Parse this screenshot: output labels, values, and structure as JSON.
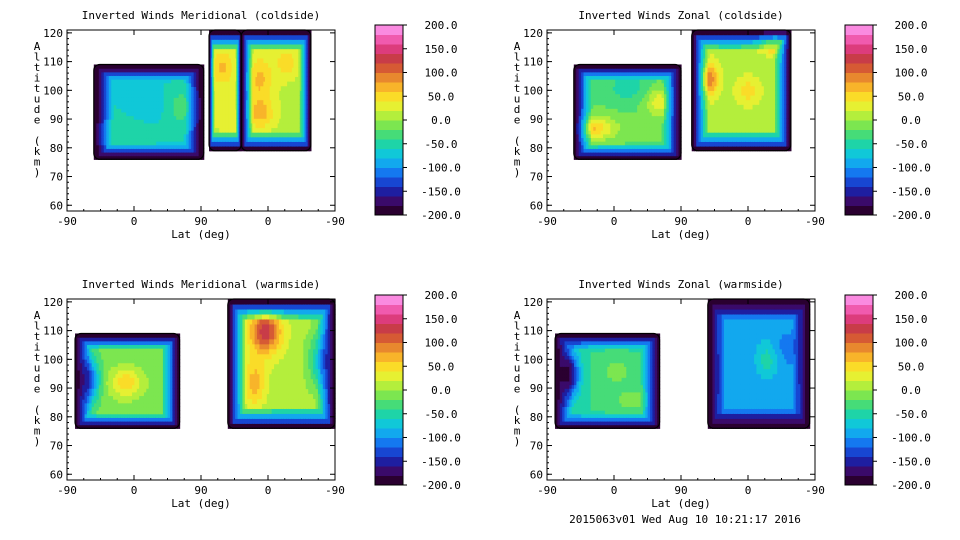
{
  "footer": "2015063v01 Wed Aug 10 10:21:17 2016",
  "colors": {
    "scale": [
      "#2a0030",
      "#3a0a6a",
      "#1e1ea0",
      "#1746d2",
      "#1478f0",
      "#12a8ee",
      "#10c8d8",
      "#1ed4a8",
      "#46dc78",
      "#7ce650",
      "#b4ee3c",
      "#e6f032",
      "#fadc28",
      "#f8b42a",
      "#e8882e",
      "#d65a34",
      "#c83c48",
      "#dc3c7c",
      "#f05aae",
      "#fa8ae0"
    ],
    "axis": "#000000",
    "background": "#ffffff"
  },
  "chart_data": [
    {
      "type": "heatmap",
      "title": "Inverted Winds Meridional (coldside)",
      "xlabel": "Lat (deg)",
      "ylabel": "Altitude (km)",
      "xticks": [
        "-90",
        "0",
        "90",
        "0",
        "-90"
      ],
      "yticks": [
        "60",
        "70",
        "80",
        "90",
        "100",
        "110",
        "120"
      ],
      "ylim": [
        58,
        121
      ],
      "colorbar_ticks": [
        "200.0",
        "150.0",
        "100.0",
        "50.0",
        "0.0",
        "-50.0",
        "-100.0",
        "-150.0",
        "-200.0"
      ],
      "colorbar_range": [
        -200,
        200
      ],
      "segments": [
        {
          "x0": 0.1,
          "x1": 0.51,
          "z0": 76,
          "z1": 109,
          "base": -60,
          "lumps": [
            [
              0.3,
              96,
              0.05,
              5,
              -20
            ],
            [
              0.43,
              94,
              0.05,
              6,
              35
            ],
            [
              0.2,
              85,
              0.1,
              4,
              20
            ]
          ]
        },
        {
          "x0": 0.53,
          "x1": 0.65,
          "z0": 79,
          "z1": 121,
          "base": 20,
          "lumps": [
            [
              0.58,
              108,
              0.04,
              6,
              45
            ],
            [
              0.61,
              90,
              0.04,
              8,
              10
            ]
          ]
        },
        {
          "x0": 0.65,
          "x1": 0.91,
          "z0": 79,
          "z1": 121,
          "base": 15,
          "lumps": [
            [
              0.72,
              104,
              0.05,
              8,
              50
            ],
            [
              0.72,
              92,
              0.05,
              5,
              55
            ],
            [
              0.82,
              110,
              0.04,
              5,
              40
            ]
          ]
        }
      ]
    },
    {
      "type": "heatmap",
      "title": "Inverted Winds Zonal (coldside)",
      "xlabel": "Lat (deg)",
      "ylabel": "Altitude (km)",
      "xticks": [
        "-90",
        "0",
        "90",
        "0",
        "-90"
      ],
      "yticks": [
        "60",
        "70",
        "80",
        "90",
        "100",
        "110",
        "120"
      ],
      "ylim": [
        58,
        121
      ],
      "colorbar_ticks": [
        "200.0",
        "150.0",
        "100.0",
        "50.0",
        "0.0",
        "-50.0",
        "-100.0",
        "-150.0",
        "-200.0"
      ],
      "colorbar_range": [
        -200,
        200
      ],
      "segments": [
        {
          "x0": 0.1,
          "x1": 0.5,
          "z0": 76,
          "z1": 109,
          "base": -20,
          "lumps": [
            [
              0.15,
              87,
              0.1,
              4,
              90
            ],
            [
              0.42,
              96,
              0.05,
              5,
              55
            ],
            [
              0.3,
              101,
              0.08,
              5,
              -30
            ]
          ]
        },
        {
          "x0": 0.54,
          "x1": 0.91,
          "z0": 79,
          "z1": 121,
          "base": 10,
          "lumps": [
            [
              0.6,
              104,
              0.04,
              6,
              90
            ],
            [
              0.85,
              118,
              0.06,
              4,
              120
            ],
            [
              0.75,
              100,
              0.05,
              5,
              40
            ]
          ]
        }
      ]
    },
    {
      "type": "heatmap",
      "title": "Inverted Winds Meridional (warmside)",
      "xlabel": "Lat (deg)",
      "ylabel": "Altitude (km)",
      "xticks": [
        "-90",
        "0",
        "90",
        "0",
        "-90"
      ],
      "yticks": [
        "60",
        "70",
        "80",
        "90",
        "100",
        "110",
        "120"
      ],
      "ylim": [
        58,
        121
      ],
      "colorbar_ticks": [
        "200.0",
        "150.0",
        "100.0",
        "50.0",
        "0.0",
        "-50.0",
        "-100.0",
        "-150.0",
        "-200.0"
      ],
      "colorbar_range": [
        -200,
        200
      ],
      "segments": [
        {
          "x0": 0.03,
          "x1": 0.42,
          "z0": 76,
          "z1": 109,
          "base": -10,
          "lumps": [
            [
              0.22,
              92,
              0.06,
              5,
              65
            ],
            [
              0.08,
              93,
              0.04,
              8,
              -120
            ]
          ]
        },
        {
          "x0": 0.6,
          "x1": 1.0,
          "z0": 76,
          "z1": 121,
          "base": 10,
          "lumps": [
            [
              0.74,
              110,
              0.06,
              8,
              120
            ],
            [
              0.7,
              92,
              0.04,
              8,
              60
            ],
            [
              0.95,
              100,
              0.05,
              10,
              -80
            ]
          ]
        }
      ]
    },
    {
      "type": "heatmap",
      "title": "Inverted Winds Zonal (warmside)",
      "xlabel": "Lat (deg)",
      "ylabel": "Altitude (km)",
      "xticks": [
        "-90",
        "0",
        "90",
        "0",
        "-90"
      ],
      "yticks": [
        "60",
        "70",
        "80",
        "90",
        "100",
        "110",
        "120"
      ],
      "ylim": [
        58,
        121
      ],
      "colorbar_ticks": [
        "200.0",
        "150.0",
        "100.0",
        "50.0",
        "0.0",
        "-50.0",
        "-100.0",
        "-150.0",
        "-200.0"
      ],
      "colorbar_range": [
        -200,
        200
      ],
      "segments": [
        {
          "x0": 0.03,
          "x1": 0.42,
          "z0": 76,
          "z1": 109,
          "base": -40,
          "lumps": [
            [
              0.26,
              96,
              0.06,
              5,
              30
            ],
            [
              0.08,
              95,
              0.04,
              8,
              -140
            ],
            [
              0.32,
              86,
              0.08,
              4,
              30
            ]
          ]
        },
        {
          "x0": 0.6,
          "x1": 0.98,
          "z0": 76,
          "z1": 121,
          "base": -90,
          "lumps": [
            [
              0.82,
              100,
              0.04,
              6,
              40
            ],
            [
              0.72,
              95,
              0.05,
              7,
              -10
            ],
            [
              0.9,
              104,
              0.05,
              6,
              -20
            ]
          ]
        }
      ]
    }
  ]
}
